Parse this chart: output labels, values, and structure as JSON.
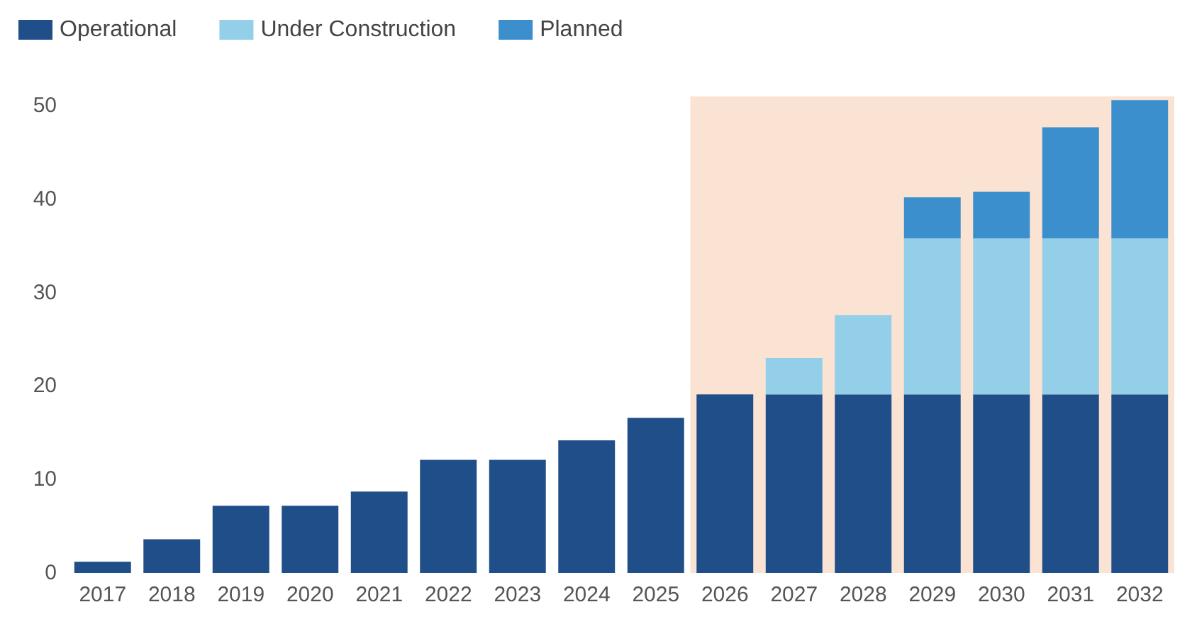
{
  "chart_data": {
    "type": "bar",
    "stacked": true,
    "categories": [
      "2017",
      "2018",
      "2019",
      "2020",
      "2021",
      "2022",
      "2023",
      "2024",
      "2025",
      "2026",
      "2027",
      "2028",
      "2029",
      "2030",
      "2031",
      "2032"
    ],
    "series": [
      {
        "name": "Operational",
        "color": "#1f4e89",
        "values": [
          1.2,
          3.6,
          7.2,
          7.2,
          8.7,
          12.1,
          12.1,
          14.2,
          16.6,
          19.1,
          19.1,
          19.1,
          19.1,
          19.1,
          19.1,
          19.1
        ]
      },
      {
        "name": "Under Construction",
        "color": "#93cfe8",
        "values": [
          null,
          null,
          null,
          null,
          null,
          null,
          null,
          null,
          null,
          null,
          3.9,
          8.5,
          16.7,
          16.7,
          16.7,
          16.7
        ]
      },
      {
        "name": "Planned",
        "color": "#3a8fcc",
        "values": [
          null,
          null,
          null,
          null,
          null,
          null,
          null,
          null,
          null,
          null,
          null,
          null,
          4.4,
          5.0,
          11.9,
          14.8
        ]
      }
    ],
    "ylim": [
      0,
      51
    ],
    "yticks": [
      0,
      10,
      20,
      30,
      40,
      50
    ],
    "grid": false,
    "legend": "top left",
    "bands": [
      {
        "axis": "x",
        "from": "2026",
        "to": "2032",
        "color": "#fbe3d3"
      }
    ]
  }
}
